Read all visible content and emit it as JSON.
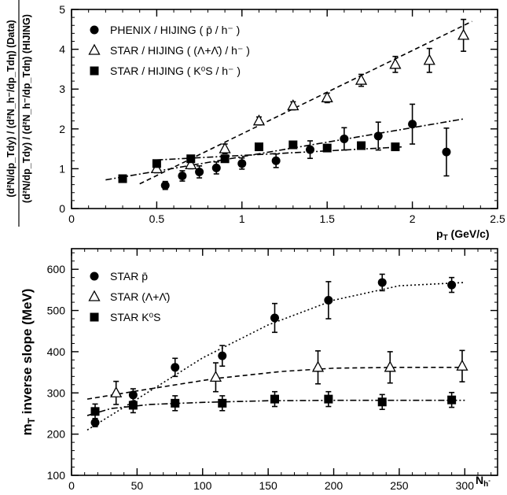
{
  "chart_data": [
    {
      "type": "scatter",
      "ylabel": "(d²N/dp_Tdy) / (d²N_h⁻/dp_Tdη) (Data) / (d²N/dp_Tdy) / (d²N_h⁻/dp_Tdη) (HIJING)",
      "ylabel_top": "(d²N/dp_Tdy) / (d²N_h⁻/dp_Tdη) (Data)",
      "ylabel_bottom": "(d²N/dp_Tdy) / (d²N_h⁻/dp_Tdη) (HIJING)",
      "xlabel": "p_T (GeV/c)",
      "xlim": [
        0,
        2.5
      ],
      "ylim": [
        0,
        5
      ],
      "xticks": [
        "0",
        "0.5",
        "1",
        "1.5",
        "2",
        "2.5"
      ],
      "yticks": [
        "0",
        "1",
        "2",
        "3",
        "4",
        "5"
      ],
      "legend_position": "top-left",
      "series": [
        {
          "name": "PHENIX / HIJING ( p̄ / h⁻ )",
          "marker": "filled-circle",
          "points": [
            {
              "x": 0.55,
              "y": 0.58,
              "err": 0.1
            },
            {
              "x": 0.65,
              "y": 0.82,
              "err": 0.13
            },
            {
              "x": 0.75,
              "y": 0.92,
              "err": 0.15
            },
            {
              "x": 0.85,
              "y": 1.02,
              "err": 0.15
            },
            {
              "x": 1.0,
              "y": 1.13,
              "err": 0.14
            },
            {
              "x": 1.2,
              "y": 1.2,
              "err": 0.17
            },
            {
              "x": 1.4,
              "y": 1.48,
              "err": 0.22
            },
            {
              "x": 1.6,
              "y": 1.75,
              "err": 0.28
            },
            {
              "x": 1.8,
              "y": 1.82,
              "err": 0.35
            },
            {
              "x": 2.0,
              "y": 2.12,
              "err": 0.5
            },
            {
              "x": 2.2,
              "y": 1.42,
              "err": 0.6
            }
          ],
          "fit": [
            [
              0.2,
              0.72
            ],
            [
              2.3,
              2.25
            ]
          ],
          "fit_style": "dash-dot"
        },
        {
          "name": "STAR / HIJING ( (Λ+Λ̄) / h⁻ )",
          "marker": "open-triangle",
          "points": [
            {
              "x": 0.5,
              "y": 1.0,
              "err": 0.1
            },
            {
              "x": 0.7,
              "y": 1.1,
              "err": 0.1
            },
            {
              "x": 0.9,
              "y": 1.5,
              "err": 0.12
            },
            {
              "x": 1.1,
              "y": 2.2,
              "err": 0.1
            },
            {
              "x": 1.3,
              "y": 2.58,
              "err": 0.1
            },
            {
              "x": 1.5,
              "y": 2.78,
              "err": 0.12
            },
            {
              "x": 1.7,
              "y": 3.22,
              "err": 0.15
            },
            {
              "x": 1.9,
              "y": 3.62,
              "err": 0.2
            },
            {
              "x": 2.1,
              "y": 3.72,
              "err": 0.3
            },
            {
              "x": 2.3,
              "y": 4.35,
              "err": 0.4
            }
          ],
          "fit": [
            [
              0.4,
              0.62
            ],
            [
              2.35,
              4.7
            ]
          ],
          "fit_style": "dashed"
        },
        {
          "name": "STAR / HIJING ( K⁰S / h⁻ )",
          "marker": "filled-square",
          "points": [
            {
              "x": 0.3,
              "y": 0.75,
              "err": 0
            },
            {
              "x": 0.5,
              "y": 1.13,
              "err": 0
            },
            {
              "x": 0.7,
              "y": 1.25,
              "err": 0
            },
            {
              "x": 0.9,
              "y": 1.25,
              "err": 0
            },
            {
              "x": 1.1,
              "y": 1.55,
              "err": 0
            },
            {
              "x": 1.3,
              "y": 1.6,
              "err": 0
            },
            {
              "x": 1.5,
              "y": 1.52,
              "err": 0
            },
            {
              "x": 1.7,
              "y": 1.58,
              "err": 0
            },
            {
              "x": 1.9,
              "y": 1.55,
              "err": 0
            }
          ],
          "fit": [
            [
              0.5,
              1.22
            ],
            [
              1.95,
              1.55
            ]
          ],
          "fit_style": "dash-dot"
        }
      ]
    },
    {
      "type": "scatter",
      "ylabel": "m_T inverse slope (MeV)",
      "xlabel": "N_h⁻",
      "xlim": [
        0,
        325
      ],
      "ylim": [
        100,
        650
      ],
      "xticks": [
        "0",
        "50",
        "100",
        "150",
        "200",
        "250",
        "300"
      ],
      "yticks": [
        "100",
        "200",
        "300",
        "400",
        "500",
        "600"
      ],
      "legend_position": "top-left",
      "series": [
        {
          "name": "STAR p̄",
          "marker": "filled-circle",
          "points": [
            {
              "x": 18,
              "y": 228,
              "err": 10
            },
            {
              "x": 47,
              "y": 295,
              "err": 15
            },
            {
              "x": 79,
              "y": 362,
              "err": 22
            },
            {
              "x": 115,
              "y": 390,
              "err": 25
            },
            {
              "x": 155,
              "y": 482,
              "err": 35
            },
            {
              "x": 196,
              "y": 525,
              "err": 45
            },
            {
              "x": 237,
              "y": 568,
              "err": 20
            },
            {
              "x": 290,
              "y": 562,
              "err": 18
            }
          ],
          "fit": [
            [
              12,
              210
            ],
            [
              50,
              285
            ],
            [
              100,
              385
            ],
            [
              150,
              465
            ],
            [
              200,
              525
            ],
            [
              250,
              560
            ],
            [
              300,
              568
            ]
          ],
          "fit_style": "dotted"
        },
        {
          "name": "STAR (Λ+Λ̄)",
          "marker": "open-triangle",
          "points": [
            {
              "x": 34,
              "y": 300,
              "err": 28
            },
            {
              "x": 110,
              "y": 338,
              "err": 35
            },
            {
              "x": 188,
              "y": 362,
              "err": 40
            },
            {
              "x": 243,
              "y": 362,
              "err": 38
            },
            {
              "x": 298,
              "y": 365,
              "err": 38
            }
          ],
          "fit": [
            [
              12,
              285
            ],
            [
              60,
              310
            ],
            [
              110,
              335
            ],
            [
              160,
              352
            ],
            [
              200,
              360
            ],
            [
              250,
              362
            ],
            [
              300,
              362
            ]
          ],
          "fit_style": "dashed"
        },
        {
          "name": "STAR K⁰S",
          "marker": "filled-square",
          "points": [
            {
              "x": 18,
              "y": 255,
              "err": 18
            },
            {
              "x": 47,
              "y": 270,
              "err": 18
            },
            {
              "x": 79,
              "y": 275,
              "err": 18
            },
            {
              "x": 115,
              "y": 275,
              "err": 18
            },
            {
              "x": 155,
              "y": 285,
              "err": 18
            },
            {
              "x": 196,
              "y": 285,
              "err": 18
            },
            {
              "x": 237,
              "y": 278,
              "err": 18
            },
            {
              "x": 290,
              "y": 283,
              "err": 18
            }
          ],
          "fit": [
            [
              12,
              245
            ],
            [
              30,
              262
            ],
            [
              60,
              272
            ],
            [
              100,
              277
            ],
            [
              150,
              281
            ],
            [
              200,
              282
            ],
            [
              300,
              282
            ]
          ],
          "fit_style": "dash-dot"
        }
      ]
    }
  ]
}
